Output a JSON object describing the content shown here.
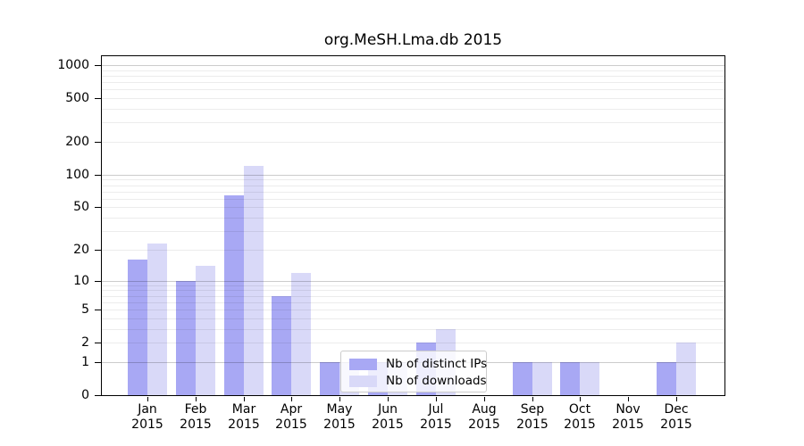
{
  "figure": {
    "background": "#ffffff",
    "axis_color": "#000000"
  },
  "chart_data": {
    "type": "bar",
    "title": "org.MeSH.Lma.db 2015",
    "categories": [
      "Jan",
      "Feb",
      "Mar",
      "Apr",
      "May",
      "Jun",
      "Jul",
      "Aug",
      "Sep",
      "Oct",
      "Nov",
      "Dec"
    ],
    "category_year": "2015",
    "series": [
      {
        "name": "Nb of distinct IPs",
        "color": "#a8a8f4",
        "values": [
          16,
          10,
          65,
          7,
          1,
          1,
          2,
          0,
          1,
          1,
          0,
          1
        ]
      },
      {
        "name": "Nb of downloads",
        "color": "#d9d9f8",
        "values": [
          23,
          14,
          120,
          12,
          1,
          1,
          3,
          0,
          1,
          1,
          0,
          2
        ]
      }
    ],
    "xlabel": "",
    "ylabel": "",
    "yscale": "log1p",
    "yticks": [
      0,
      1,
      2,
      5,
      10,
      20,
      50,
      100,
      200,
      500,
      1000
    ],
    "ylim": [
      0,
      1230
    ],
    "grid": "horizontal",
    "legend_position": "inside-lower-center"
  }
}
